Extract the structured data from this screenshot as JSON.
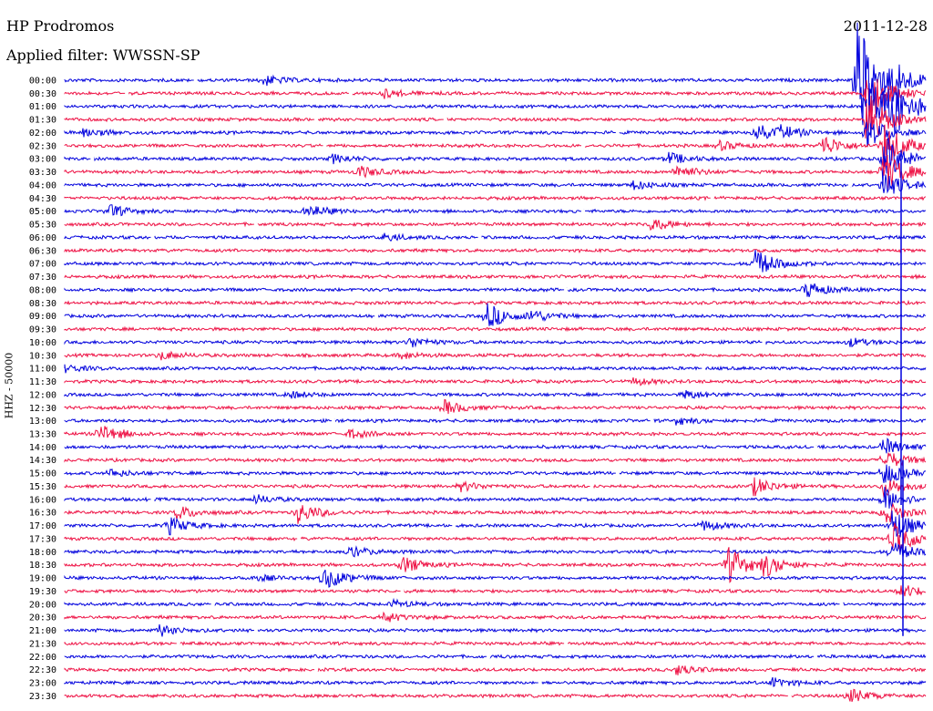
{
  "header": {
    "station": "HP Prodromos",
    "filter_label": "Applied filter: WWSSN-SP",
    "date": "2011-12-28"
  },
  "channel_label": "HHZ - 50000",
  "colors": {
    "trace_a": "#0000dd",
    "trace_b": "#ee1144",
    "text": "#000000",
    "background": "#ffffff"
  },
  "rows": [
    "00:00",
    "00:30",
    "01:00",
    "01:30",
    "02:00",
    "02:30",
    "03:00",
    "03:30",
    "04:00",
    "04:30",
    "05:00",
    "05:30",
    "06:00",
    "06:30",
    "07:00",
    "07:30",
    "08:00",
    "08:30",
    "09:00",
    "09:30",
    "10:00",
    "10:30",
    "11:00",
    "11:30",
    "12:00",
    "12:30",
    "13:00",
    "13:30",
    "14:00",
    "14:30",
    "15:00",
    "15:30",
    "16:00",
    "16:30",
    "17:00",
    "17:30",
    "18:00",
    "18:30",
    "19:00",
    "19:30",
    "20:00",
    "20:30",
    "21:00",
    "21:30",
    "22:00",
    "22:30",
    "23:00",
    "23:30"
  ],
  "events": [
    {
      "row": 0,
      "t": 0.23,
      "a": 6
    },
    {
      "row": 0,
      "t": 0.92,
      "a": 70
    },
    {
      "row": 0,
      "t": 0.96,
      "a": 18
    },
    {
      "row": 1,
      "t": 0.37,
      "a": 5
    },
    {
      "row": 1,
      "t": 0.93,
      "a": 40
    },
    {
      "row": 2,
      "t": 0.93,
      "a": 50
    },
    {
      "row": 2,
      "t": 0.96,
      "a": 30
    },
    {
      "row": 3,
      "t": 0.93,
      "a": 35
    },
    {
      "row": 4,
      "t": 0.02,
      "a": 6
    },
    {
      "row": 4,
      "t": 0.8,
      "a": 11
    },
    {
      "row": 4,
      "t": 0.83,
      "a": 6
    },
    {
      "row": 4,
      "t": 0.93,
      "a": 20
    },
    {
      "row": 5,
      "t": 0.76,
      "a": 5
    },
    {
      "row": 5,
      "t": 0.88,
      "a": 12
    },
    {
      "row": 5,
      "t": 0.95,
      "a": 28
    },
    {
      "row": 6,
      "t": 0.31,
      "a": 5
    },
    {
      "row": 6,
      "t": 0.7,
      "a": 7
    },
    {
      "row": 6,
      "t": 0.95,
      "a": 30
    },
    {
      "row": 7,
      "t": 0.34,
      "a": 7
    },
    {
      "row": 7,
      "t": 0.71,
      "a": 8
    },
    {
      "row": 7,
      "t": 0.95,
      "a": 26
    },
    {
      "row": 8,
      "t": 0.66,
      "a": 5
    },
    {
      "row": 8,
      "t": 0.95,
      "a": 15
    },
    {
      "row": 10,
      "t": 0.05,
      "a": 7
    },
    {
      "row": 10,
      "t": 0.28,
      "a": 8
    },
    {
      "row": 11,
      "t": 0.68,
      "a": 7
    },
    {
      "row": 12,
      "t": 0.37,
      "a": 4
    },
    {
      "row": 14,
      "t": 0.8,
      "a": 17
    },
    {
      "row": 16,
      "t": 0.86,
      "a": 10
    },
    {
      "row": 18,
      "t": 0.49,
      "a": 15
    },
    {
      "row": 18,
      "t": 0.54,
      "a": 7
    },
    {
      "row": 20,
      "t": 0.4,
      "a": 6
    },
    {
      "row": 20,
      "t": 0.91,
      "a": 5
    },
    {
      "row": 21,
      "t": 0.11,
      "a": 5
    },
    {
      "row": 21,
      "t": 0.39,
      "a": 4
    },
    {
      "row": 22,
      "t": 0.0,
      "a": 4
    },
    {
      "row": 23,
      "t": 0.66,
      "a": 4
    },
    {
      "row": 24,
      "t": 0.72,
      "a": 5
    },
    {
      "row": 24,
      "t": 0.26,
      "a": 4
    },
    {
      "row": 25,
      "t": 0.44,
      "a": 8
    },
    {
      "row": 26,
      "t": 0.71,
      "a": 4
    },
    {
      "row": 27,
      "t": 0.04,
      "a": 12
    },
    {
      "row": 27,
      "t": 0.33,
      "a": 5
    },
    {
      "row": 28,
      "t": 0.95,
      "a": 10
    },
    {
      "row": 29,
      "t": 0.95,
      "a": 12
    },
    {
      "row": 30,
      "t": 0.05,
      "a": 5
    },
    {
      "row": 30,
      "t": 0.95,
      "a": 14
    },
    {
      "row": 31,
      "t": 0.46,
      "a": 5
    },
    {
      "row": 31,
      "t": 0.8,
      "a": 10
    },
    {
      "row": 31,
      "t": 0.95,
      "a": 12
    },
    {
      "row": 32,
      "t": 0.22,
      "a": 5
    },
    {
      "row": 32,
      "t": 0.95,
      "a": 15
    },
    {
      "row": 33,
      "t": 0.13,
      "a": 8
    },
    {
      "row": 33,
      "t": 0.27,
      "a": 12
    },
    {
      "row": 33,
      "t": 0.95,
      "a": 14
    },
    {
      "row": 34,
      "t": 0.12,
      "a": 10
    },
    {
      "row": 34,
      "t": 0.74,
      "a": 6
    },
    {
      "row": 34,
      "t": 0.96,
      "a": 20
    },
    {
      "row": 35,
      "t": 0.96,
      "a": 22
    },
    {
      "row": 36,
      "t": 0.33,
      "a": 6
    },
    {
      "row": 36,
      "t": 0.96,
      "a": 12
    },
    {
      "row": 37,
      "t": 0.39,
      "a": 10
    },
    {
      "row": 37,
      "t": 0.77,
      "a": 20
    },
    {
      "row": 37,
      "t": 0.81,
      "a": 12
    },
    {
      "row": 38,
      "t": 0.3,
      "a": 14
    },
    {
      "row": 38,
      "t": 0.22,
      "a": 4
    },
    {
      "row": 39,
      "t": 0.97,
      "a": 8
    },
    {
      "row": 40,
      "t": 0.38,
      "a": 4
    },
    {
      "row": 41,
      "t": 0.37,
      "a": 6
    },
    {
      "row": 42,
      "t": 0.11,
      "a": 6
    },
    {
      "row": 45,
      "t": 0.71,
      "a": 6
    },
    {
      "row": 46,
      "t": 0.82,
      "a": 6
    },
    {
      "row": 47,
      "t": 0.91,
      "a": 9
    }
  ],
  "gaps": [
    {
      "row": 0,
      "t": 0.15
    },
    {
      "row": 1,
      "t": 0.07
    },
    {
      "row": 1,
      "t": 0.33
    },
    {
      "row": 3,
      "t": 0.29
    },
    {
      "row": 3,
      "t": 0.44
    },
    {
      "row": 4,
      "t": 0.64
    },
    {
      "row": 5,
      "t": 0.3
    },
    {
      "row": 5,
      "t": 0.6
    },
    {
      "row": 6,
      "t": 0.03
    },
    {
      "row": 8,
      "t": 0.91
    },
    {
      "row": 9,
      "t": 0.75
    },
    {
      "row": 10,
      "t": 0.6
    },
    {
      "row": 11,
      "t": 0.22
    },
    {
      "row": 12,
      "t": 0.1
    },
    {
      "row": 12,
      "t": 0.48
    },
    {
      "row": 16,
      "t": 0.58
    },
    {
      "row": 18,
      "t": 0.36
    },
    {
      "row": 20,
      "t": 0.81
    },
    {
      "row": 22,
      "t": 0.74
    },
    {
      "row": 26,
      "t": 0.31
    },
    {
      "row": 26,
      "t": 0.68
    },
    {
      "row": 28,
      "t": 0.87
    },
    {
      "row": 30,
      "t": 0.64
    },
    {
      "row": 31,
      "t": 0.61
    },
    {
      "row": 32,
      "t": 0.1
    },
    {
      "row": 34,
      "t": 0.45
    },
    {
      "row": 35,
      "t": 0.27
    },
    {
      "row": 39,
      "t": 0.39
    },
    {
      "row": 40,
      "t": 0.17
    },
    {
      "row": 40,
      "t": 0.9
    },
    {
      "row": 42,
      "t": 0.22
    },
    {
      "row": 43,
      "t": 0.13
    },
    {
      "row": 43,
      "t": 0.58
    },
    {
      "row": 44,
      "t": 0.49
    },
    {
      "row": 44,
      "t": 0.87
    },
    {
      "row": 45,
      "t": 0.29
    },
    {
      "row": 46,
      "t": 0.55
    },
    {
      "row": 47,
      "t": 0.84
    }
  ]
}
